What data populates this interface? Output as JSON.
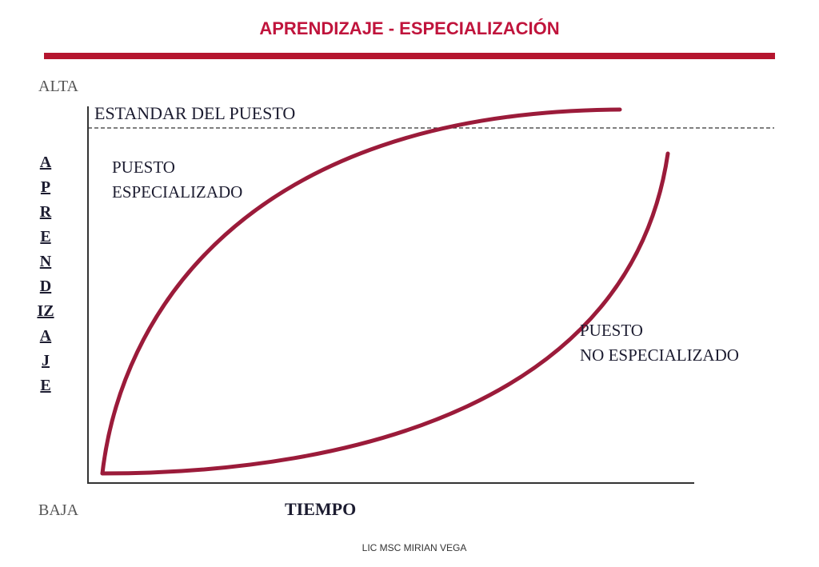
{
  "header": {
    "title": "APRENDIZAJE - ESPECIALIZACIÓN"
  },
  "axes": {
    "high": "ALTA",
    "low": "BAJA",
    "y_label": "APRENDIZAJE",
    "x_label": "TIEMPO"
  },
  "standard": "ESTANDAR DEL PUESTO",
  "curves": [
    {
      "label": [
        "PUESTO",
        "ESPECIALIZADO"
      ]
    },
    {
      "label": [
        "PUESTO",
        "NO ESPECIALIZADO"
      ]
    }
  ],
  "footer": "LIC MSC MIRIAN VEGA"
}
